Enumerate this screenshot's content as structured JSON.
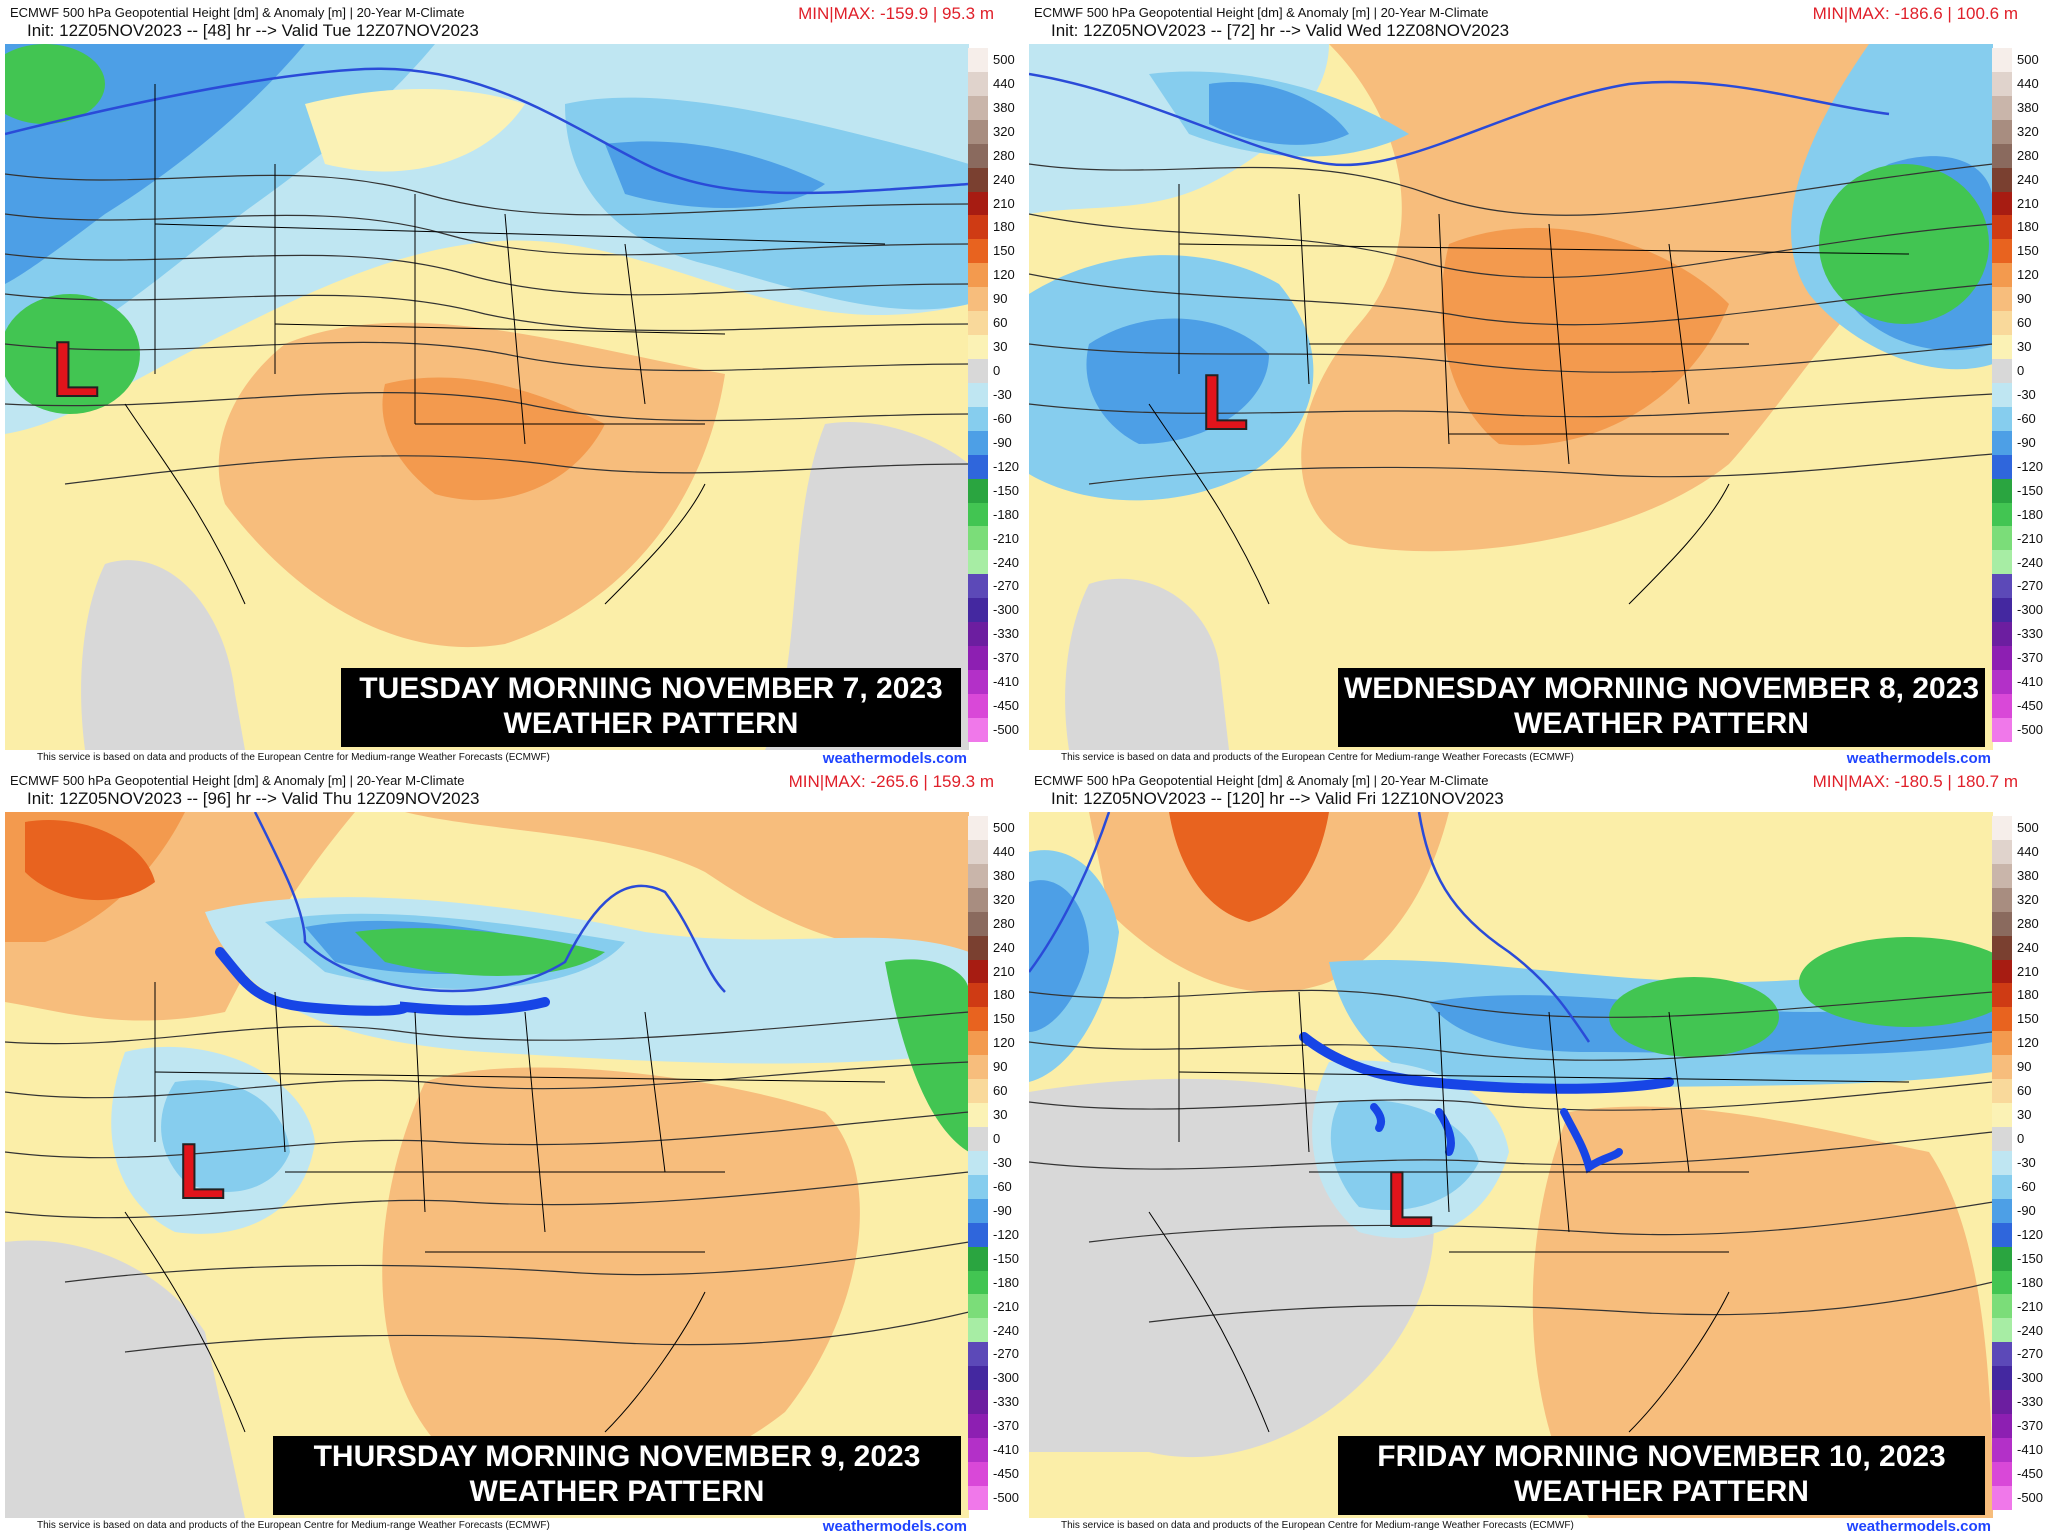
{
  "common": {
    "model_line": "ECMWF 500 hPa Geopotential Height [dm] & Anomaly [m] | 20-Year M-Climate",
    "credit": "This service is based on data and products of the European Centre for Medium-range Weather Forecasts (ECMWF)",
    "site": "weathermodels.com",
    "low_symbol": "L"
  },
  "colorbar": {
    "labels": [
      "500",
      "440",
      "380",
      "320",
      "280",
      "240",
      "210",
      "180",
      "150",
      "120",
      "90",
      "60",
      "30",
      "0",
      "-30",
      "-60",
      "-90",
      "-120",
      "-150",
      "-180",
      "-210",
      "-240",
      "-270",
      "-300",
      "-330",
      "-370",
      "-410",
      "-450",
      "-500"
    ],
    "colors": [
      "#f6eeea",
      "#e0d3cc",
      "#c9b5aa",
      "#a88d80",
      "#8a6a5e",
      "#7a4030",
      "#a71c12",
      "#cf3b14",
      "#e8631f",
      "#f39a4e",
      "#f7bd7c",
      "#f9d99b",
      "#fbf2b5",
      "#d8d8d8",
      "#bfe6f2",
      "#86cdee",
      "#4d9fe6",
      "#2f66dc",
      "#2aa540",
      "#42c552",
      "#7bdd79",
      "#a7eda4",
      "#5c49b8",
      "#4428a0",
      "#6c1ea0",
      "#8d1fb2",
      "#b330c8",
      "#d948d8",
      "#f078ea"
    ]
  },
  "panels": [
    {
      "init": "Init: 12Z05NOV2023 -- [48] hr --> Valid Tue 12Z07NOV2023",
      "minmax": "MIN|MAX: -159.9 | 95.3 m",
      "caption_line1": "TUESDAY MORNING NOVEMBER 7, 2023",
      "caption_line2": "WEATHER PATTERN"
    },
    {
      "init": "Init: 12Z05NOV2023 -- [72] hr --> Valid Wed 12Z08NOV2023",
      "minmax": "MIN|MAX: -186.6 | 100.6 m",
      "caption_line1": "WEDNESDAY MORNING NOVEMBER 8, 2023",
      "caption_line2": "WEATHER PATTERN"
    },
    {
      "init": "Init: 12Z05NOV2023 -- [96] hr --> Valid Thu 12Z09NOV2023",
      "minmax": "MIN|MAX: -265.6 | 159.3 m",
      "caption_line1": "THURSDAY MORNING NOVEMBER 9, 2023",
      "caption_line2": "WEATHER PATTERN"
    },
    {
      "init": "Init: 12Z05NOV2023 -- [120] hr --> Valid Fri 12Z10NOV2023",
      "minmax": "MIN|MAX: -180.5 | 180.7 m",
      "caption_line1": "FRIDAY MORNING NOVEMBER 10, 2023",
      "caption_line2": "WEATHER PATTERN"
    }
  ]
}
